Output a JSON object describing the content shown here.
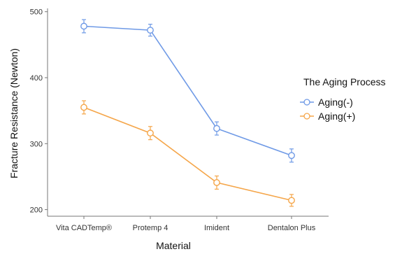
{
  "chart_data": {
    "type": "line",
    "title": "",
    "xlabel": "Material",
    "ylabel": "Fracture Resistance (Newton)",
    "categories": [
      "Vita CADTemp®",
      "Protemp 4",
      "Imident",
      "Dentalon Plus"
    ],
    "ylim": [
      190,
      505
    ],
    "yticks": [
      200,
      300,
      400,
      500
    ],
    "grid": false,
    "legend": {
      "title": "The Aging Process",
      "placement": "right"
    },
    "series": [
      {
        "name": "Aging(-)",
        "color": "#6f9ae6",
        "values": [
          478,
          472,
          323,
          282
        ],
        "errors": [
          10,
          9,
          10,
          10
        ]
      },
      {
        "name": "Aging(+)",
        "color": "#f5a64a",
        "values": [
          355,
          316,
          241,
          214
        ],
        "errors": [
          10,
          10,
          10,
          9
        ]
      }
    ]
  }
}
